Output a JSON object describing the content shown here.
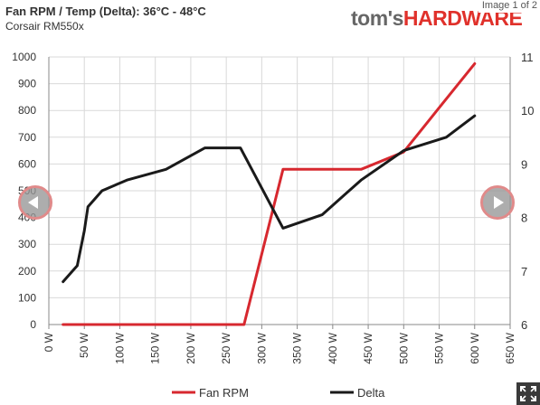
{
  "header": {
    "title": "Fan RPM / Temp (Delta): 36°C - 48°C",
    "subtitle": "Corsair RM550x",
    "logo_part1": "tom's",
    "logo_part2": "HARDWARE",
    "image_counter": "Image 1 of 2"
  },
  "colors": {
    "fan_rpm": "#d7282f",
    "delta": "#1a1a1a",
    "grid": "#d9d9d9",
    "axis_text": "#333333"
  },
  "icons": {
    "prev": "chevron-left-icon",
    "next": "chevron-right-icon",
    "fullscreen": "expand-icon"
  },
  "chart_data": {
    "type": "line",
    "title": "Fan RPM / Temp (Delta): 36°C - 48°C",
    "subtitle": "Corsair RM550x",
    "x": {
      "ticks": [
        0,
        50,
        100,
        150,
        200,
        250,
        300,
        350,
        400,
        450,
        500,
        550,
        600,
        650
      ],
      "tick_labels": [
        "0 W",
        "50 W",
        "100 W",
        "150 W",
        "200 W",
        "250 W",
        "300 W",
        "350 W",
        "400 W",
        "450 W",
        "500 W",
        "550 W",
        "600 W",
        "650 W"
      ],
      "range": [
        0,
        650
      ]
    },
    "y_left": {
      "ticks": [
        0,
        100,
        200,
        300,
        400,
        500,
        600,
        700,
        800,
        900,
        1000
      ],
      "tick_labels": [
        "0",
        "100",
        "200",
        "300",
        "400",
        "500",
        "600",
        "700",
        "800",
        "900",
        "1000"
      ],
      "range": [
        0,
        1000
      ]
    },
    "y_right": {
      "ticks": [
        6,
        7,
        8,
        9,
        10,
        11
      ],
      "tick_labels": [
        "6",
        "7",
        "8",
        "9",
        "10",
        "11"
      ],
      "range": [
        6,
        11
      ]
    },
    "grid": true,
    "legend_position": "bottom",
    "series": [
      {
        "name": "Fan RPM",
        "axis": "left",
        "color": "#d7282f",
        "points": [
          [
            20,
            0
          ],
          [
            275,
            0
          ],
          [
            330,
            580
          ],
          [
            440,
            580
          ],
          [
            500,
            645
          ],
          [
            550,
            810
          ],
          [
            600,
            975
          ]
        ]
      },
      {
        "name": "Delta",
        "axis": "right",
        "color": "#1a1a1a",
        "points": [
          [
            20,
            6.8
          ],
          [
            40,
            7.1
          ],
          [
            50,
            7.75
          ],
          [
            55,
            8.2
          ],
          [
            75,
            8.5
          ],
          [
            110,
            8.7
          ],
          [
            165,
            8.9
          ],
          [
            220,
            9.3
          ],
          [
            270,
            9.3
          ],
          [
            330,
            7.8
          ],
          [
            385,
            8.05
          ],
          [
            440,
            8.7
          ],
          [
            500,
            9.25
          ],
          [
            560,
            9.5
          ],
          [
            600,
            9.9
          ]
        ]
      }
    ]
  }
}
